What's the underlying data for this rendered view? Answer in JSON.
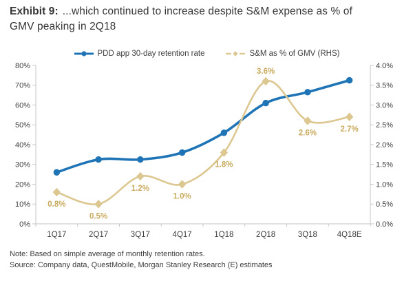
{
  "header": {
    "exhibit_label": "Exhibit 9:",
    "title_line1": "...which continued to increase despite S&M expense as % of",
    "title_line2": "GMV peaking in 2Q18"
  },
  "legend": {
    "series1_label": "PDD app 30-day retention rate",
    "series2_label": "S&M as % of GMV (RHS)"
  },
  "footer": {
    "note": "Note: Based on simple average of monthly retention rates.",
    "source": "Source: Company data, QuestMobile, Morgan Stanley Research (E) estimates"
  },
  "colors": {
    "blue": "#1f74b6",
    "tan": "#dcc791",
    "tan_label": "#c9ab5e",
    "axis_line": "#c6c6c6",
    "tick_text": "#3f3f3f"
  },
  "chart_data": {
    "type": "line",
    "title": "Exhibit 9: ...which continued to increase despite S&M expense as % of GMV peaking in 2Q18",
    "categories": [
      "1Q17",
      "2Q17",
      "3Q17",
      "4Q17",
      "1Q18",
      "2Q18",
      "3Q18",
      "4Q18E"
    ],
    "series": [
      {
        "name": "PDD app 30-day retention rate",
        "axis": "left",
        "marker": "circle",
        "color_key": "blue",
        "values": [
          26,
          32.5,
          32.5,
          36,
          46,
          61,
          66.5,
          72.5
        ]
      },
      {
        "name": "S&M as % of GMV (RHS)",
        "axis": "right",
        "marker": "diamond",
        "color_key": "tan",
        "values": [
          0.8,
          0.5,
          1.2,
          1.0,
          1.8,
          3.6,
          2.6,
          2.7
        ],
        "point_labels": [
          "0.8%",
          "0.5%",
          "1.2%",
          "1.0%",
          "1.8%",
          "3.6%",
          "2.6%",
          "2.7%"
        ],
        "label_positions": [
          "below",
          "below",
          "below",
          "below",
          "below",
          "above",
          "below",
          "below"
        ]
      }
    ],
    "left_axis": {
      "min": 0,
      "max": 80,
      "step": 10,
      "suffix": "%",
      "decimals": 0
    },
    "right_axis": {
      "min": 0,
      "max": 4,
      "step": 0.5,
      "suffix": "%",
      "decimals": 1
    },
    "grid": false,
    "legend_position": "top",
    "smoothed": true
  }
}
